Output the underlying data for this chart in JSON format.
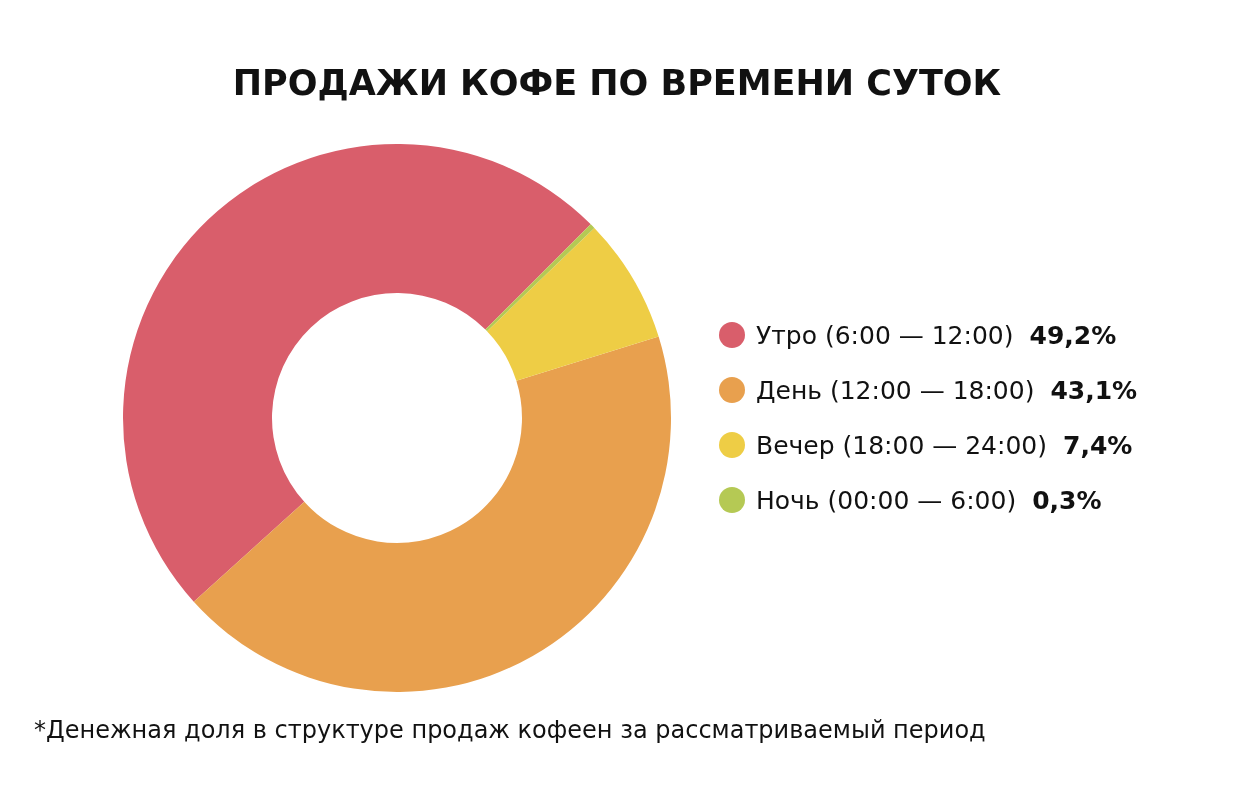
{
  "chart_data": {
    "type": "donut",
    "title": "ПРОДАЖИ КОФЕ ПО ВРЕМЕНИ СУТОК",
    "categories": [
      "Утро (6:00 — 12:00)",
      "День (12:00 — 18:00)",
      "Вечер (18:00 — 24:00)",
      "Ночь (00:00 — 6:00)"
    ],
    "values": [
      49.2,
      43.1,
      7.4,
      0.3
    ],
    "value_labels": [
      "49,2%",
      "43,1%",
      "7,4%",
      "0,3%"
    ],
    "colors": [
      "#d95e6b",
      "#e8a04e",
      "#eecd45",
      "#b5c954"
    ],
    "legend": "right",
    "annotations": [
      "*Денежная доля в структуре продаж кофеен за рассматриваемый период"
    ]
  }
}
